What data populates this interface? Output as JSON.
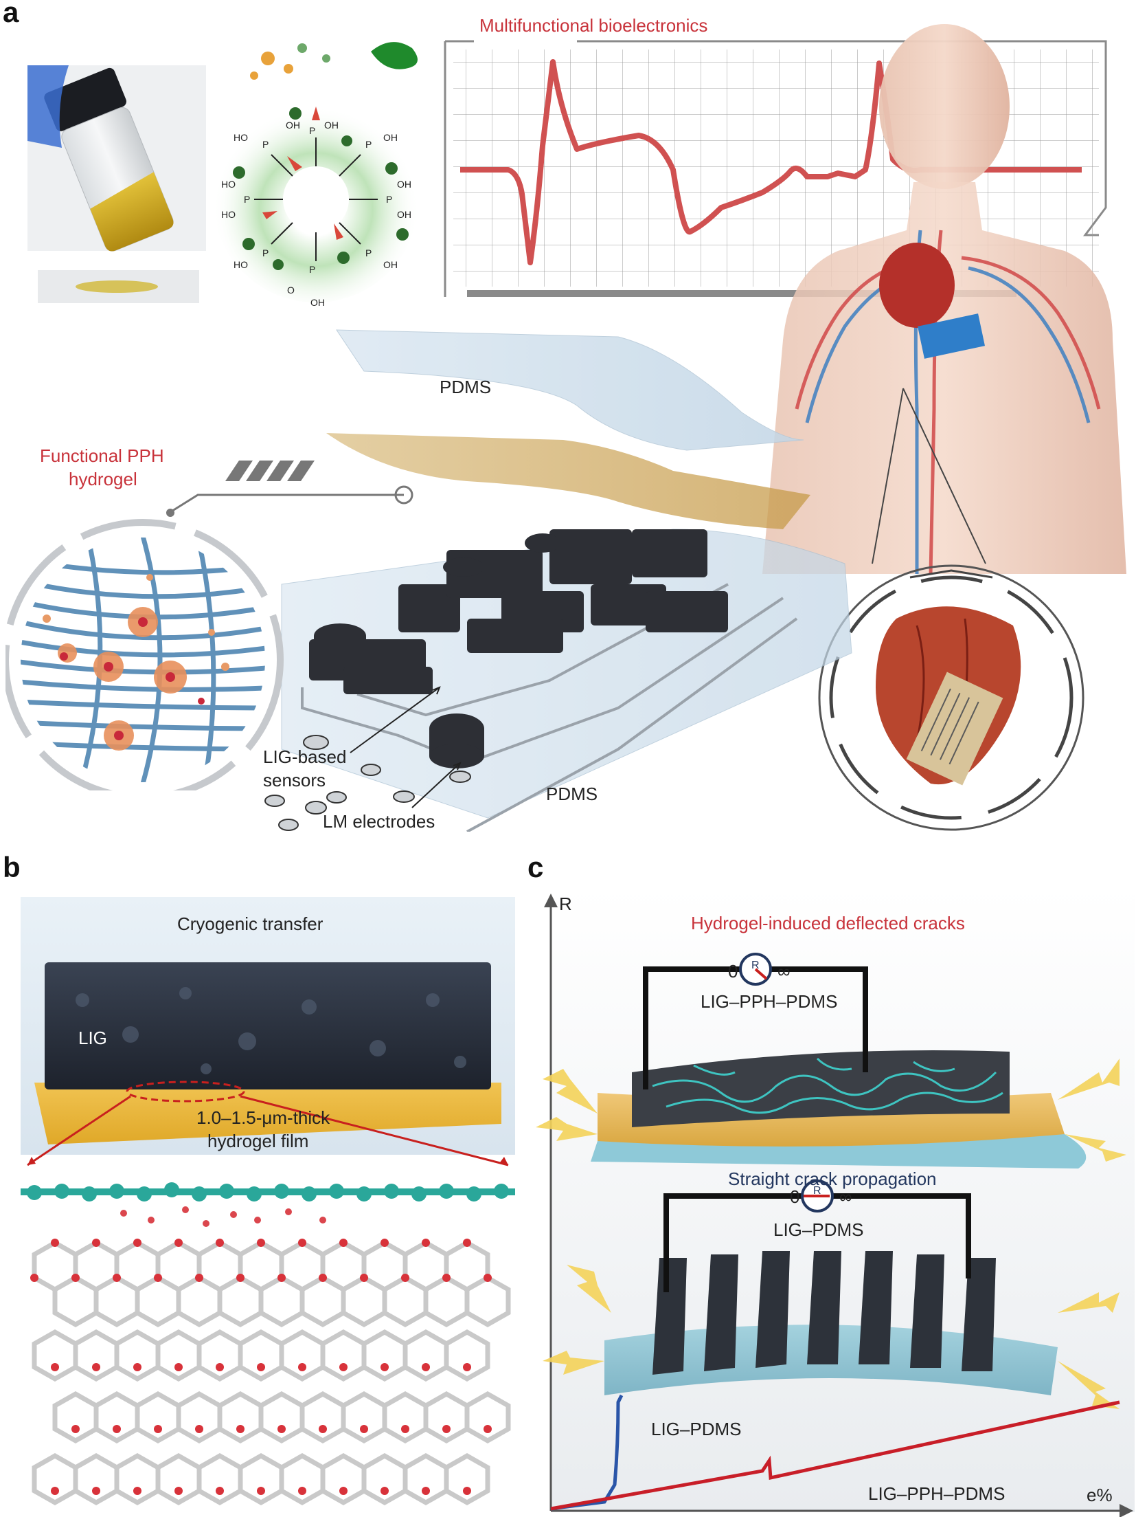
{
  "panel_letters": {
    "a": "a",
    "b": "b",
    "c": "c"
  },
  "panel_a": {
    "title": "Multifunctional bioelectronics",
    "hydrogel_label_line1": "Functional PPH",
    "hydrogel_label_line2": "hydrogel",
    "pdms_top": "PDMS",
    "pdms_bottom": "PDMS",
    "sensors_label_line1": "LIG-based",
    "sensors_label_line2": "sensors",
    "electrodes_label": "LM electrodes",
    "molecule_groups": {
      "oh": "OH",
      "ho": "HO",
      "p": "P",
      "o": "O"
    }
  },
  "panel_b": {
    "title": "Cryogenic transfer",
    "lig_label": "LIG",
    "film_line1": "1.0–1.5-μm-thick",
    "film_line2": "hydrogel film"
  },
  "panel_c": {
    "y_axis": "R",
    "x_axis": "e%",
    "top_title": "Hydrogel-induced deflected cracks",
    "top_sample": "LIG–PPH–PDMS",
    "bottom_title": "Straight crack propagation",
    "bottom_sample": "LIG–PDMS",
    "meter_zero": "0",
    "meter_inf": "∞",
    "meter_r": "R",
    "curve_label_blue": "LIG–PDMS",
    "curve_label_red": "LIG–PPH–PDMS"
  },
  "colors": {
    "accent_red": "#c8323a",
    "navy": "#23375f",
    "curve_blue": "#2a55a8",
    "curve_red": "#c81e28"
  }
}
